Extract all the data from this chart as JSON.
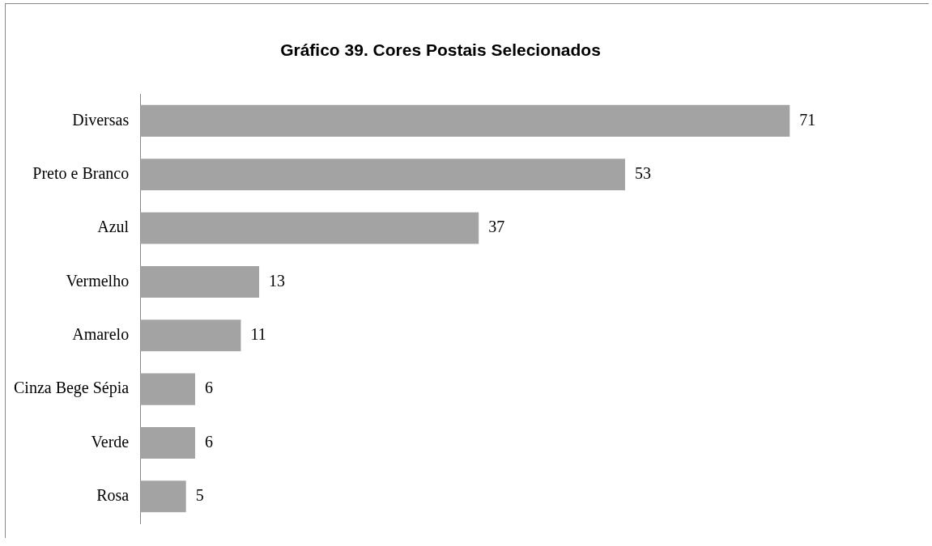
{
  "chart_data": {
    "type": "bar",
    "orientation": "horizontal",
    "title": "Gráfico 39. Cores Postais Selecionados",
    "categories": [
      "Diversas",
      "Preto e Branco",
      "Azul",
      "Vermelho",
      "Amarelo",
      "Cinza Bege Sépia",
      "Verde",
      "Rosa"
    ],
    "values": [
      71,
      53,
      37,
      13,
      11,
      6,
      6,
      5
    ],
    "color": "#a3a3a3",
    "data_labels": true,
    "legend": false,
    "tick_labels": "y"
  }
}
